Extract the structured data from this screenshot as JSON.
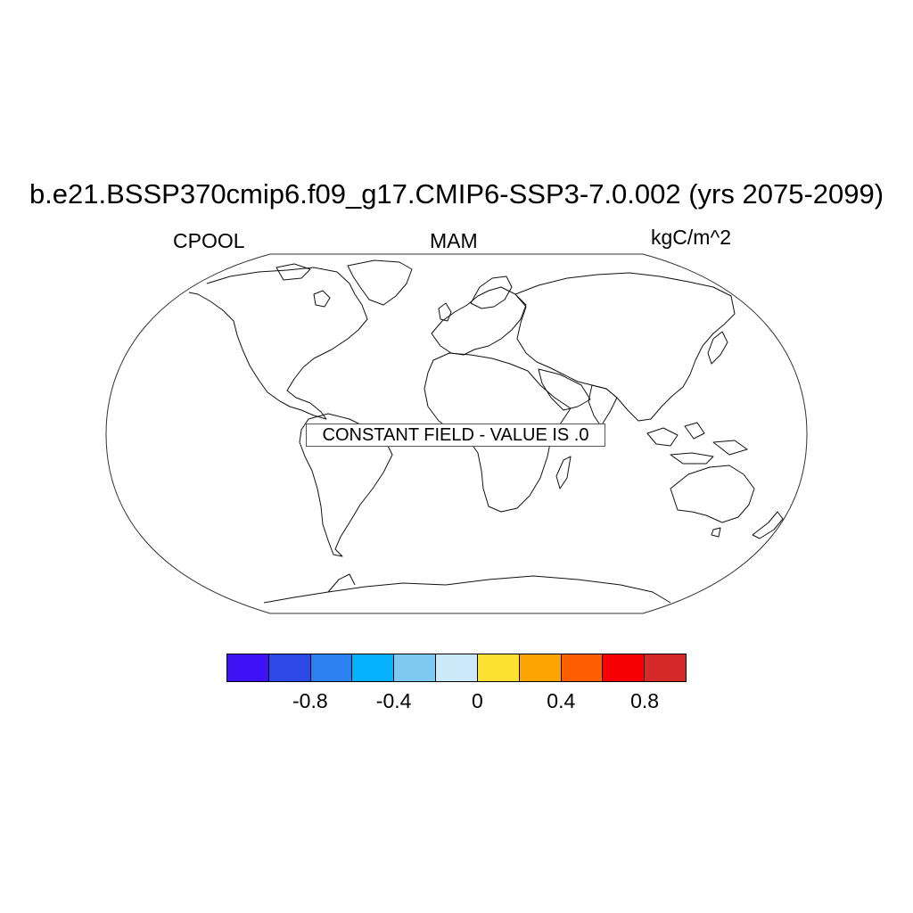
{
  "title": "b.e21.BSSP370cmip6.f09_g17.CMIP6-SSP3-7.0.002 (yrs 2075-2099)",
  "left_label": "CPOOL",
  "center_label": "MAM",
  "right_label": "kgC/m^2",
  "notice": "CONSTANT FIELD - VALUE IS .0",
  "colorbar": {
    "colors": [
      "#3f12f5",
      "#2c48e6",
      "#2d80f0",
      "#06b2fd",
      "#7dc9f0",
      "#cbe9f8",
      "#fde132",
      "#fca502",
      "#fd5f02",
      "#f70103",
      "#d62a2a"
    ],
    "tick_labels": [
      "-0.8",
      "-0.4",
      "0",
      "0.4",
      "0.8"
    ]
  }
}
